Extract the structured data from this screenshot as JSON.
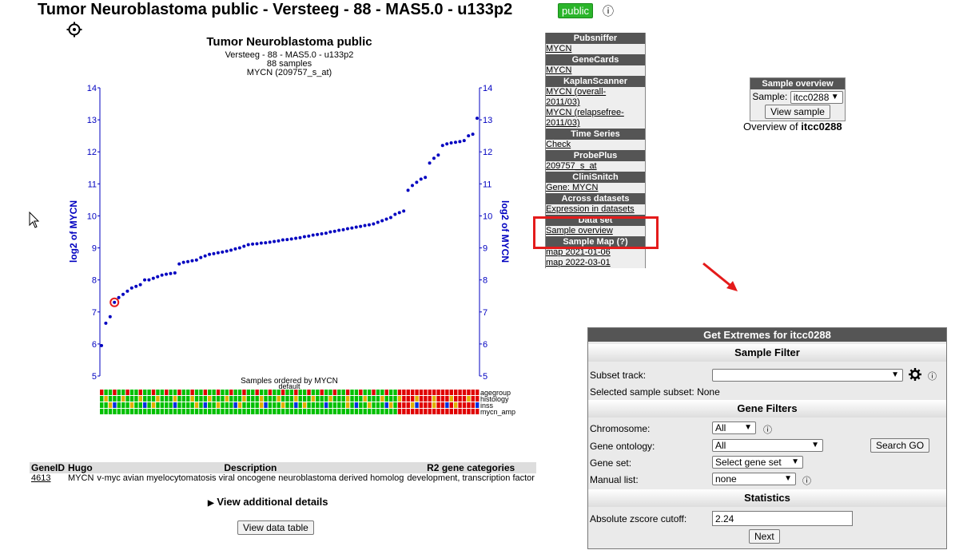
{
  "header": {
    "title": "Tumor Neuroblastoma public - Versteeg - 88 - MAS5.0 - u133p2",
    "badge": "public",
    "info_icon": "info-icon",
    "settings_icon": "gear-icon"
  },
  "chart_data": {
    "type": "scatter",
    "title": "Tumor Neuroblastoma public",
    "subtitle_lines": [
      "Versteeg - 88 - MAS5.0 - u133p2",
      "88 samples",
      "MYCN (209757_s_at)"
    ],
    "ylabel": "log2 of MYCN",
    "xlabel": "Samples ordered by MYCN",
    "xlabel2": "default",
    "ylim": [
      5,
      14
    ],
    "yticks": [
      5,
      6,
      7,
      8,
      9,
      10,
      11,
      12,
      13,
      14
    ],
    "series": [
      {
        "values": [
          5.95,
          6.65,
          6.85,
          7.3,
          7.45,
          7.55,
          7.65,
          7.75,
          7.8,
          7.85,
          8.0,
          8.0,
          8.05,
          8.1,
          8.15,
          8.18,
          8.2,
          8.22,
          8.5,
          8.55,
          8.57,
          8.6,
          8.62,
          8.7,
          8.75,
          8.8,
          8.82,
          8.85,
          8.87,
          8.9,
          8.93,
          8.97,
          9.0,
          9.05,
          9.1,
          9.12,
          9.13,
          9.15,
          9.16,
          9.18,
          9.2,
          9.22,
          9.25,
          9.26,
          9.28,
          9.3,
          9.32,
          9.35,
          9.37,
          9.4,
          9.42,
          9.44,
          9.46,
          9.5,
          9.52,
          9.55,
          9.57,
          9.6,
          9.62,
          9.65,
          9.67,
          9.7,
          9.72,
          9.75,
          9.8,
          9.85,
          9.9,
          9.95,
          10.05,
          10.1,
          10.15,
          10.8,
          10.95,
          11.05,
          11.15,
          11.2,
          11.65,
          11.8,
          11.9,
          12.2,
          12.25,
          12.28,
          12.3,
          12.32,
          12.35,
          12.5,
          12.55,
          13.05
        ]
      }
    ],
    "highlighted_index": 3,
    "tracks": [
      "agegroup",
      "histology",
      "inss",
      "mycn_amp"
    ],
    "colors": {
      "series": "#0000c0",
      "axis": "#0000c0",
      "highlight": "#e41b1b"
    }
  },
  "sidebar": [
    {
      "header": "Pubsniffer",
      "links": [
        "MYCN"
      ]
    },
    {
      "header": "GeneCards",
      "links": [
        "MYCN"
      ]
    },
    {
      "header": "KaplanScanner",
      "links": [
        "MYCN (overall-",
        "2011/03)",
        "MYCN (relapsefree-",
        "2011/03)"
      ]
    },
    {
      "header": "Time Series",
      "links": [
        "Check"
      ]
    },
    {
      "header": "ProbePlus",
      "links": [
        "209757_s_at"
      ]
    },
    {
      "header": "CliniSnitch",
      "links": [
        "Gene: MYCN"
      ]
    },
    {
      "header": "Across datasets",
      "links": [
        "Expression in datasets"
      ]
    },
    {
      "header": "Data set",
      "links": [
        "Sample overview"
      ]
    },
    {
      "header": "Sample Map (?)",
      "links": [
        "map 2021-01-06",
        "map 2022-03-01"
      ]
    }
  ],
  "sample_overview": {
    "header": "Sample overview",
    "label": "Sample:",
    "selected": "itcc0288",
    "button": "View sample",
    "caption_prefix": "Overview of ",
    "caption_bold": "itcc0288"
  },
  "gene_table": {
    "headers": [
      "GeneID",
      "Hugo",
      "Description",
      "R2 gene categories"
    ],
    "rows": [
      [
        "4613",
        "MYCN",
        "v-myc avian myelocytomatosis viral oncogene neuroblastoma derived homolog",
        "development, transcription factor"
      ]
    ]
  },
  "details_toggle": "View additional details",
  "view_table_button": "View data table",
  "extremes": {
    "header": "Get Extremes for itcc0288",
    "sample_filter": "Sample Filter",
    "subset_label": "Subset track:",
    "subset_value": "",
    "selected_subset_label": "Selected sample subset:",
    "selected_subset_value": "None",
    "gene_filters": "Gene Filters",
    "chromosome_label": "Chromosome:",
    "chromosome_value": "All",
    "ontology_label": "Gene ontology:",
    "ontology_value": "All",
    "search_go": "Search GO",
    "geneset_label": "Gene set:",
    "geneset_value": "Select gene set",
    "manual_label": "Manual list:",
    "manual_value": "none",
    "statistics": "Statistics",
    "zscore_label": "Absolute zscore cutoff:",
    "zscore_value": "2.24",
    "next": "Next"
  }
}
